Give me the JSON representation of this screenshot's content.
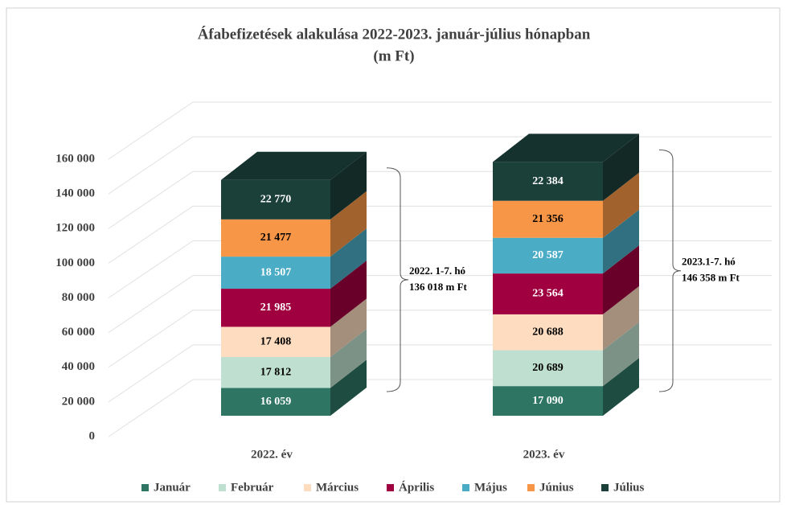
{
  "chart_data": {
    "type": "bar3d-stacked",
    "title": "Áfabefizetések alakulása 2022-2023. január-július hónapban",
    "subtitle": "(m Ft)",
    "categories": [
      "2022. év",
      "2023. év"
    ],
    "series": [
      {
        "name": "Január",
        "color": "#2e7563",
        "values": [
          16059,
          17090
        ],
        "value_labels": [
          "16 059",
          "17 090"
        ]
      },
      {
        "name": "Február",
        "color": "#bfe0d0",
        "values": [
          17812,
          20689
        ],
        "value_labels": [
          "17 812",
          "20 689"
        ]
      },
      {
        "name": "Március",
        "color": "#fddcbf",
        "values": [
          17408,
          20688
        ],
        "value_labels": [
          "17 408",
          "20 688"
        ]
      },
      {
        "name": "Április",
        "color": "#a0003f",
        "values": [
          21985,
          23564
        ],
        "value_labels": [
          "21 985",
          "23 564"
        ]
      },
      {
        "name": "Május",
        "color": "#4bacc6",
        "values": [
          18507,
          20587
        ],
        "value_labels": [
          "18 507",
          "20 587"
        ]
      },
      {
        "name": "Június",
        "color": "#f79646",
        "values": [
          21477,
          21356
        ],
        "value_labels": [
          "21 477",
          "21 356"
        ]
      },
      {
        "name": "Július",
        "color": "#1b3f39",
        "values": [
          22770,
          22384
        ],
        "value_labels": [
          "22 770",
          "22 384"
        ]
      }
    ],
    "annotations": [
      [
        "2022. 1-7. hó",
        "136 018 m Ft"
      ],
      [
        "2023.1-7. hó",
        "146 358 m Ft"
      ]
    ],
    "ylim": [
      0,
      160000
    ],
    "yticks": [
      0,
      {
        "value": 20000,
        "label": "20 000"
      },
      {
        "value": 40000,
        "label": "40 000"
      },
      {
        "value": 60000,
        "label": "60 000"
      },
      {
        "value": 80000,
        "label": "80 000"
      },
      {
        "value": 100000,
        "label": "100 000"
      },
      {
        "value": 120000,
        "label": "120 000"
      },
      {
        "value": 140000,
        "label": "140 000"
      },
      {
        "value": 160000,
        "label": "160 000"
      }
    ],
    "grid": true,
    "legend": "bottom"
  }
}
